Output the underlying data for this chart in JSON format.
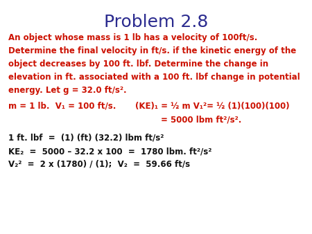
{
  "title": "Problem 2.8",
  "title_color": "#2b2b8f",
  "title_fontsize": 18,
  "background_color": "#ffffff",
  "red": "#cc1100",
  "black": "#111111",
  "para_lines": [
    "An object whose mass is 1 lb has a velocity of 100ft/s.",
    "Determine the final velocity in ft/s. if the kinetic energy of the",
    "object decreases by 100 ft. lbf. Determine the change in",
    "elevation in ft. associated with a 100 ft. lbf change in potential",
    "energy. Let g = 32.0 ft/s²."
  ],
  "eq_left": "m = 1 lb.  V₁ = 100 ft/s.",
  "eq_right1": "(KE)₁ = ½ m V₁²= ½ (1)(100)(100)",
  "eq_right2": "= 5000 lbm ft²/s².",
  "line3": "1 ft. lbf  =  (1) (ft) (32.2) lbm ft/s²",
  "line4": "KE₂  =  5000 – 32.2 x 100  =  1780 lbm. ft²/s²",
  "line5": "V₂²  =  2 x (1780) / (1);  V₂  =  59.66 ft/s",
  "fs_para": 8.5,
  "fs_eq": 8.5
}
